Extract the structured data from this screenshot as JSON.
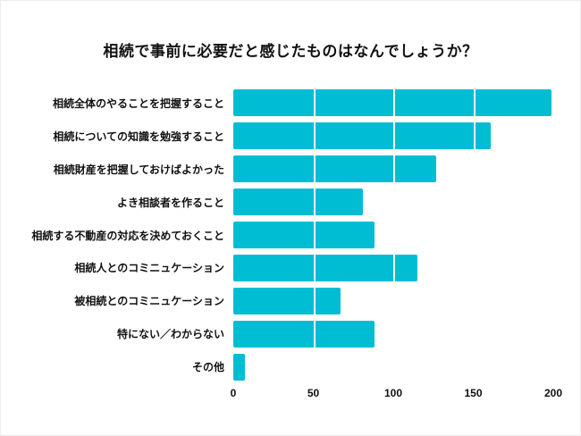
{
  "title": "相続で事前に必要だと感じたものはなんでしょうか？",
  "chart_data": {
    "type": "bar",
    "orientation": "horizontal",
    "title": "相続で事前に必要だと感じたものはなんでしょうか？",
    "categories": [
      "相続全体のやることを把握すること",
      "相続についての知識を勉強すること",
      "相続財産を把握しておけばよかった",
      "よき相談者を作ること",
      "相続する不動産の対応を決めておくこと",
      "相続人とのコミニュケーション",
      "被相続とのコミニュケーション",
      "特にない／わからない",
      "その他"
    ],
    "values": [
      199,
      161,
      127,
      81,
      88,
      115,
      67,
      88,
      7
    ],
    "xlim": [
      0,
      200
    ],
    "xticks": [
      0,
      50,
      100,
      150,
      200
    ],
    "bar_color": "#00BDD4",
    "grid": "vertical",
    "legend_position": "none",
    "xlabel": "",
    "ylabel": ""
  }
}
